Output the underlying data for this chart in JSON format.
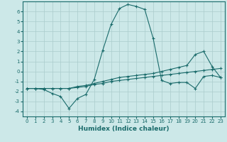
{
  "title": "",
  "xlabel": "Humidex (Indice chaleur)",
  "ylabel": "",
  "bg_color": "#cce8e8",
  "line_color": "#1a6b6b",
  "grid_color": "#aacccc",
  "xlim": [
    -0.5,
    23.5
  ],
  "ylim": [
    -4.5,
    7.0
  ],
  "xticks": [
    0,
    1,
    2,
    3,
    4,
    5,
    6,
    7,
    8,
    9,
    10,
    11,
    12,
    13,
    14,
    15,
    16,
    17,
    18,
    19,
    20,
    21,
    22,
    23
  ],
  "yticks": [
    -4,
    -3,
    -2,
    -1,
    0,
    1,
    2,
    3,
    4,
    5,
    6
  ],
  "line1_x": [
    0,
    1,
    2,
    3,
    4,
    5,
    6,
    7,
    8,
    9,
    10,
    11,
    12,
    13,
    14,
    15,
    16,
    17,
    18,
    19,
    20,
    21,
    22,
    23
  ],
  "line1_y": [
    -1.7,
    -1.7,
    -1.8,
    -2.2,
    -2.5,
    -3.7,
    -2.7,
    -2.3,
    -0.8,
    2.1,
    4.7,
    6.3,
    6.7,
    6.5,
    6.2,
    3.3,
    -0.9,
    -1.2,
    -1.1,
    -1.1,
    -1.7,
    -0.5,
    -0.4,
    -0.6
  ],
  "line2_x": [
    0,
    1,
    2,
    3,
    4,
    5,
    6,
    7,
    8,
    9,
    10,
    11,
    12,
    13,
    14,
    15,
    16,
    17,
    18,
    19,
    20,
    21,
    22,
    23
  ],
  "line2_y": [
    -1.7,
    -1.7,
    -1.7,
    -1.7,
    -1.7,
    -1.7,
    -1.6,
    -1.5,
    -1.3,
    -1.2,
    -1.0,
    -0.9,
    -0.8,
    -0.7,
    -0.6,
    -0.5,
    -0.4,
    -0.3,
    -0.2,
    -0.1,
    0.0,
    0.1,
    0.2,
    0.3
  ],
  "line3_x": [
    0,
    1,
    2,
    3,
    4,
    5,
    6,
    7,
    8,
    9,
    10,
    11,
    12,
    13,
    14,
    15,
    16,
    17,
    18,
    19,
    20,
    21,
    22,
    23
  ],
  "line3_y": [
    -1.7,
    -1.7,
    -1.7,
    -1.7,
    -1.7,
    -1.7,
    -1.5,
    -1.4,
    -1.2,
    -1.0,
    -0.8,
    -0.6,
    -0.5,
    -0.4,
    -0.3,
    -0.2,
    -0.0,
    0.2,
    0.4,
    0.6,
    1.7,
    2.0,
    0.5,
    -0.6
  ],
  "xlabel_fontsize": 6.5,
  "tick_fontsize": 5.0
}
